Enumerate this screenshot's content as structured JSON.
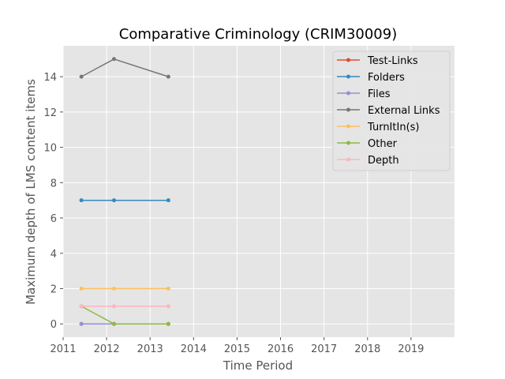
{
  "chart_data": {
    "type": "line",
    "title": "Comparative Criminology (CRIM30009)",
    "xlabel": "Time Period",
    "ylabel": "Maximum depth of LMS content items",
    "xlim": [
      2011,
      2020
    ],
    "ylim": [
      -0.75,
      15.75
    ],
    "xticks": [
      2011,
      2012,
      2013,
      2014,
      2015,
      2016,
      2017,
      2018,
      2019
    ],
    "yticks": [
      0,
      2,
      4,
      6,
      8,
      10,
      12,
      14
    ],
    "grid": true,
    "legend_position": "top-right",
    "x": [
      2011.42,
      2012.17,
      2013.42
    ],
    "series": [
      {
        "name": "Test-Links",
        "color": "#e24a33",
        "values": [
          0,
          0,
          0
        ]
      },
      {
        "name": "Folders",
        "color": "#348abd",
        "values": [
          7,
          7,
          7
        ]
      },
      {
        "name": "Files",
        "color": "#988ed5",
        "values": [
          0,
          0,
          0
        ]
      },
      {
        "name": "External Links",
        "color": "#777777",
        "values": [
          14,
          15,
          14
        ]
      },
      {
        "name": "TurnItIn(s)",
        "color": "#fbc15e",
        "values": [
          2,
          2,
          2
        ]
      },
      {
        "name": "Other",
        "color": "#8eba42",
        "values": [
          1,
          0,
          0
        ]
      },
      {
        "name": "Depth",
        "color": "#ffb5b8",
        "values": [
          1,
          1,
          1
        ]
      }
    ]
  }
}
